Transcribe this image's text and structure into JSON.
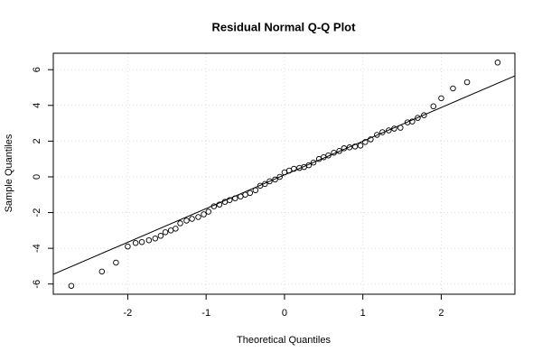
{
  "chart_data": {
    "type": "scatter",
    "title": "Residual Normal Q-Q Plot",
    "x_label": "Theoretical Quantiles",
    "y_label": "Sample Quantiles",
    "xlim": [
      -2.95,
      2.94
    ],
    "ylim": [
      -6.57,
      6.92
    ],
    "xticks": [
      -2,
      -1,
      0,
      1,
      2
    ],
    "yticks": [
      -6,
      -4,
      -2,
      0,
      2,
      4,
      6
    ],
    "grid": true,
    "color": "#000000",
    "reference_line": {
      "intercept": 0.11,
      "slope": 1.886
    },
    "x": [
      -2.72,
      -2.33,
      -2.15,
      -2.0,
      -1.9,
      -1.82,
      -1.73,
      -1.65,
      -1.58,
      -1.52,
      -1.45,
      -1.39,
      -1.33,
      -1.25,
      -1.18,
      -1.1,
      -1.03,
      -0.97,
      -0.9,
      -0.83,
      -0.76,
      -0.7,
      -0.63,
      -0.56,
      -0.5,
      -0.44,
      -0.37,
      -0.31,
      -0.25,
      -0.19,
      -0.12,
      -0.06,
      0.0,
      0.06,
      0.12,
      0.19,
      0.25,
      0.31,
      0.37,
      0.44,
      0.5,
      0.56,
      0.63,
      0.7,
      0.76,
      0.83,
      0.9,
      0.97,
      1.03,
      1.1,
      1.18,
      1.25,
      1.33,
      1.4,
      1.48,
      1.57,
      1.63,
      1.7,
      1.78,
      1.9,
      2.0,
      2.15,
      2.33,
      2.72
    ],
    "values": [
      -6.1,
      -5.3,
      -4.8,
      -3.9,
      -3.7,
      -3.65,
      -3.55,
      -3.45,
      -3.3,
      -3.1,
      -3.0,
      -2.9,
      -2.6,
      -2.45,
      -2.35,
      -2.25,
      -2.1,
      -1.95,
      -1.65,
      -1.55,
      -1.4,
      -1.3,
      -1.2,
      -1.1,
      -1.0,
      -0.9,
      -0.75,
      -0.5,
      -0.4,
      -0.25,
      -0.15,
      0.0,
      0.25,
      0.35,
      0.45,
      0.5,
      0.55,
      0.65,
      0.8,
      1.0,
      1.1,
      1.2,
      1.35,
      1.45,
      1.6,
      1.65,
      1.7,
      1.75,
      1.95,
      2.1,
      2.35,
      2.5,
      2.6,
      2.7,
      2.75,
      3.05,
      3.1,
      3.3,
      3.45,
      3.95,
      4.4,
      4.95,
      5.3,
      6.4
    ]
  }
}
